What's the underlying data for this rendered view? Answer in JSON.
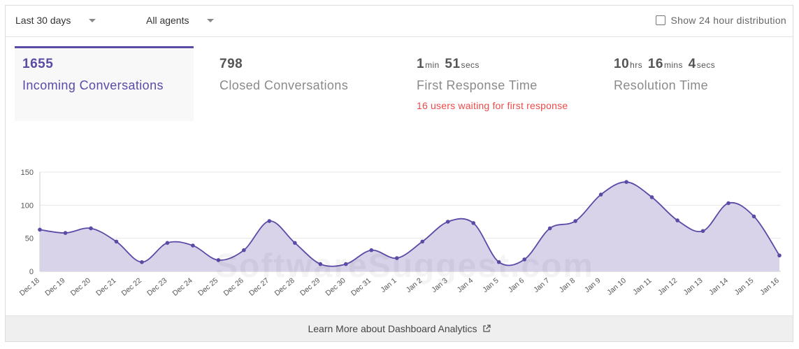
{
  "filters": {
    "date_range": "Last 30 days",
    "agents": "All agents",
    "distribution_label": "Show 24 hour distribution",
    "distribution_checked": false
  },
  "metrics": {
    "incoming": {
      "value": "1655",
      "label": "Incoming Conversations"
    },
    "closed": {
      "value": "798",
      "label": "Closed Conversations"
    },
    "first_response": {
      "min": "1",
      "min_unit": "min",
      "sec": "51",
      "sec_unit": "secs",
      "label": "First Response Time",
      "warning": "16 users waiting for first response"
    },
    "resolution": {
      "hrs": "10",
      "hrs_unit": "hrs",
      "mins": "16",
      "mins_unit": "mins",
      "secs": "4",
      "secs_unit": "secs",
      "label": "Resolution Time"
    }
  },
  "footer": {
    "link_text": "Learn More about Dashboard Analytics",
    "icon": "external-link-icon"
  },
  "watermark": "SoftwareSuggest.com",
  "colors": {
    "accent": "#5b4aa6",
    "fill": "#d9d3ea",
    "warning": "#ef4a4a"
  },
  "chart_data": {
    "type": "area",
    "categories": [
      "Dec 18",
      "Dec 19",
      "Dec 20",
      "Dec 21",
      "Dec 22",
      "Dec 23",
      "Dec 24",
      "Dec 25",
      "Dec 26",
      "Dec 27",
      "Dec 28",
      "Dec 29",
      "Dec 30",
      "Dec 31",
      "Jan 1",
      "Jan 2",
      "Jan 3",
      "Jan 4",
      "Jan 5",
      "Jan 6",
      "Jan 7",
      "Jan 8",
      "Jan 9",
      "Jan 10",
      "Jan 11",
      "Jan 12",
      "Jan 13",
      "Jan 14",
      "Jan 15",
      "Jan 16"
    ],
    "values": [
      63,
      58,
      65,
      45,
      14,
      43,
      39,
      17,
      32,
      76,
      43,
      11,
      11,
      32,
      20,
      45,
      75,
      73,
      14,
      18,
      65,
      76,
      116,
      135,
      112,
      77,
      61,
      103,
      83,
      24
    ],
    "ylim": [
      0,
      150
    ],
    "yticks": [
      0,
      50,
      100,
      150
    ],
    "grid": true,
    "xlabel": "",
    "ylabel": ""
  }
}
